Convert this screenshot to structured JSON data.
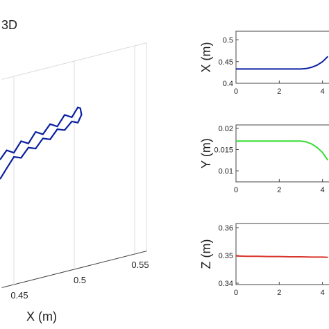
{
  "chart_data": [
    {
      "type": "line3d",
      "title": "3D",
      "xlabel": "X (m)",
      "color": "#0a1fa0",
      "xlim": [
        0.44,
        0.56
      ],
      "xticks": [
        0.45,
        0.5,
        0.55
      ],
      "zlim": [
        0.3,
        0.45
      ],
      "x": [
        0.4385,
        0.444,
        0.45,
        0.456,
        0.462,
        0.468,
        0.474,
        0.48,
        0.486,
        0.492,
        0.498,
        0.503,
        0.505,
        0.506,
        0.503,
        0.498,
        0.492,
        0.486,
        0.48,
        0.474,
        0.468,
        0.462,
        0.456,
        0.45,
        0.444,
        0.4385
      ],
      "z": [
        0.3925,
        0.398,
        0.395,
        0.402,
        0.399,
        0.406,
        0.403,
        0.409,
        0.406,
        0.413,
        0.41,
        0.416,
        0.415,
        0.41,
        0.405,
        0.407,
        0.402,
        0.404,
        0.398,
        0.4,
        0.394,
        0.396,
        0.39,
        0.392,
        0.385,
        0.3785
      ]
    },
    {
      "type": "line",
      "ylabel": "X (m)",
      "color": "#0a1fa0",
      "xlim": [
        0,
        4.3
      ],
      "xticks": [
        0,
        2,
        4
      ],
      "ylim": [
        0.4,
        0.52
      ],
      "yticks": [
        0.4,
        0.45,
        0.5
      ],
      "x": [
        0,
        0.5,
        1,
        1.5,
        2,
        2.5,
        3,
        3.25,
        3.5,
        3.75,
        4,
        4.25
      ],
      "values": [
        0.433,
        0.433,
        0.433,
        0.433,
        0.433,
        0.433,
        0.433,
        0.434,
        0.437,
        0.442,
        0.45,
        0.462
      ]
    },
    {
      "type": "line",
      "ylabel": "Y (m)",
      "color": "#33dd33",
      "xlim": [
        0,
        4.3
      ],
      "xticks": [
        0,
        2,
        4
      ],
      "ylim": [
        0.0074,
        0.0208
      ],
      "yticks": [
        0.01,
        0.015,
        0.02
      ],
      "x": [
        0,
        0.5,
        1,
        1.5,
        2,
        2.5,
        3,
        3.25,
        3.5,
        3.75,
        4,
        4.25
      ],
      "values": [
        0.017,
        0.017,
        0.017,
        0.017,
        0.017,
        0.017,
        0.017,
        0.0168,
        0.0163,
        0.0155,
        0.0143,
        0.0125
      ]
    },
    {
      "type": "line",
      "ylabel": "Z (m)",
      "color": "#d9352a",
      "xlim": [
        0,
        4.3
      ],
      "xticks": [
        0,
        2,
        4
      ],
      "ylim": [
        0.3395,
        0.3615
      ],
      "yticks": [
        0.34,
        0.35,
        0.36
      ],
      "x": [
        0,
        0.5,
        1,
        1.5,
        2,
        2.5,
        3,
        3.5,
        4,
        4.25
      ],
      "values": [
        0.3498,
        0.3497,
        0.3497,
        0.3496,
        0.3496,
        0.3495,
        0.3495,
        0.3494,
        0.3494,
        0.3493
      ]
    }
  ]
}
